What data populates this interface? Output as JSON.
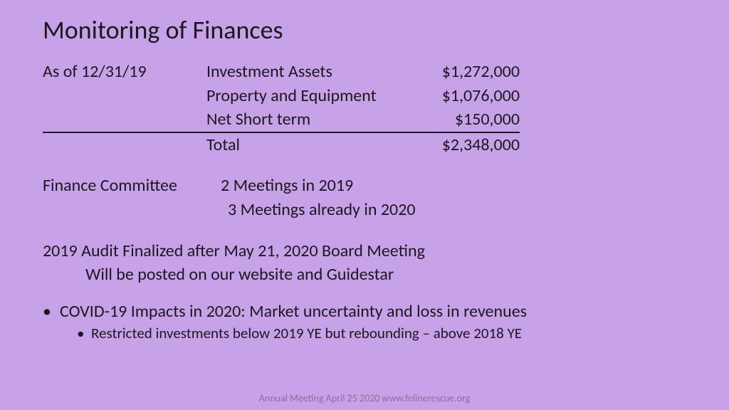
{
  "title": "Monitoring of Finances",
  "asOfDate": "As of 12/31/19",
  "finances": {
    "rows": [
      {
        "label": "Investment Assets",
        "value": "$1,272,000"
      },
      {
        "label": "Property and Equipment",
        "value": "$1,076,000"
      },
      {
        "label": "Net Short term",
        "value": "$150,000"
      }
    ],
    "total": {
      "label": "Total",
      "value": "$2,348,000"
    }
  },
  "committee": {
    "label": "Finance Committee",
    "line1": "2 Meetings in 2019",
    "line2": "3 Meetings already in 2020"
  },
  "audit": {
    "line1": "2019 Audit Finalized after May 21, 2020 Board Meeting",
    "line2": "Will be posted on our website and Guidestar"
  },
  "covid": {
    "main": "COVID-19 Impacts in 2020: Market uncertainty and loss in revenues",
    "sub": "Restricted investments below 2019 YE but rebounding – above 2018 YE"
  },
  "footer": "Annual Meeting April 25 2020 www.felinerescue.org",
  "colors": {
    "background": "#c8a2e8",
    "text": "#1a1a1a",
    "footer": "#8a7099"
  },
  "typography": {
    "title_fontsize": 36,
    "body_fontsize": 24,
    "sub_bullet_fontsize": 21,
    "footer_fontsize": 14,
    "font_family": "Calibri"
  }
}
